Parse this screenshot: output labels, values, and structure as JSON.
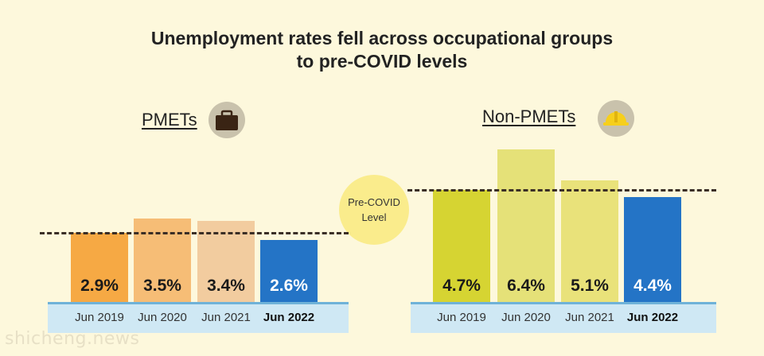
{
  "title_line1": "Unemployment rates fell across occupational groups",
  "title_line2": "to pre-COVID levels",
  "pre_covid_label_line1": "Pre-COVID",
  "pre_covid_label_line2": "Level",
  "watermark": "shicheng.news",
  "chart_data": [
    {
      "type": "bar",
      "title": "PMETs",
      "icon": "briefcase-icon",
      "categories": [
        "Jun 2019",
        "Jun 2020",
        "Jun 2021",
        "Jun 2022"
      ],
      "values": [
        2.9,
        3.5,
        3.4,
        2.6
      ],
      "value_labels": [
        "2.9%",
        "3.5%",
        "3.4%",
        "2.6%"
      ],
      "colors": [
        "#f6a944",
        "#f6bd76",
        "#f2cc9f",
        "#2474c6"
      ],
      "reference_line": 2.9,
      "ylim": [
        0,
        7
      ]
    },
    {
      "type": "bar",
      "title": "Non-PMETs",
      "icon": "hard-hat-icon",
      "categories": [
        "Jun 2019",
        "Jun 2020",
        "Jun 2021",
        "Jun 2022"
      ],
      "values": [
        4.7,
        6.4,
        5.1,
        4.4
      ],
      "value_labels": [
        "4.7%",
        "6.4%",
        "5.1%",
        "4.4%"
      ],
      "colors": [
        "#d6d432",
        "#e5e178",
        "#e9e27a",
        "#2474c6"
      ],
      "reference_line": 4.7,
      "ylim": [
        0,
        7
      ]
    }
  ]
}
